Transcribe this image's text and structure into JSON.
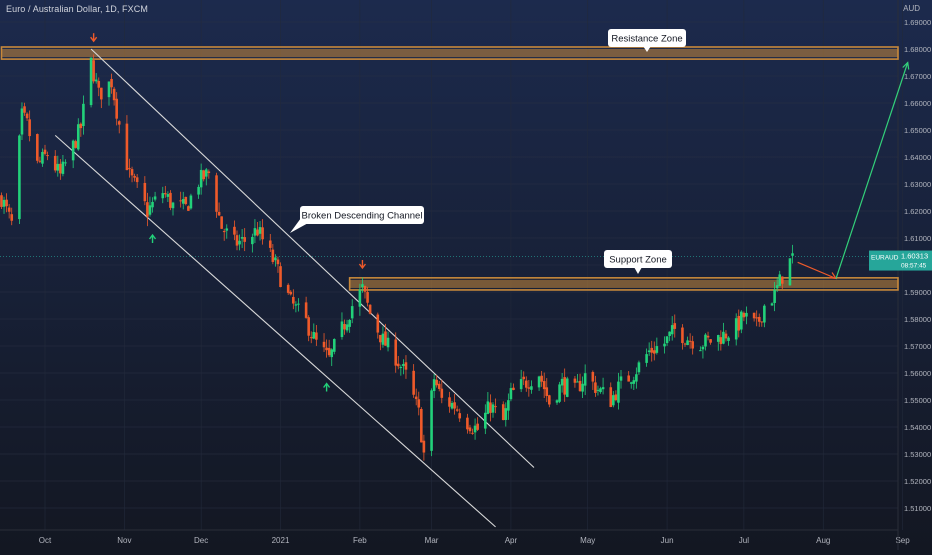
{
  "header": {
    "symbol_title": "Euro / Australian Dollar, 1D, FXCM",
    "currency": "AUD"
  },
  "price_tag": {
    "symbol": "EURAUD",
    "price": "1.60313",
    "countdown": "08:57:45"
  },
  "annotations": {
    "resistance": "Resistance Zone",
    "support": "Support Zone",
    "channel": "Broken Descending Channel"
  },
  "colors": {
    "background": "#131722",
    "up": "#26a69a",
    "up_bright": "#22d17a",
    "down": "#ef5a2a",
    "zone": "#c8893b",
    "channel": "#d9d9d9",
    "projection": "#33d17a",
    "price_tag": "#26a69a"
  },
  "chart_data": {
    "type": "candlestick",
    "symbol": "EURAUD",
    "timeframe": "1D",
    "source": "FXCM",
    "x_labels": [
      "Oct",
      "Nov",
      "Dec",
      "2021",
      "Feb",
      "Mar",
      "Apr",
      "May",
      "Jun",
      "Jul",
      "Aug",
      "Sep"
    ],
    "y_ticks": [
      1.51,
      1.52,
      1.53,
      1.54,
      1.55,
      1.56,
      1.57,
      1.58,
      1.59,
      1.6,
      1.61,
      1.62,
      1.63,
      1.64,
      1.65,
      1.66,
      1.67,
      1.68,
      1.69
    ],
    "y_tick_labels": [
      "1.51000",
      "1.52000",
      "1.53000",
      "1.54000",
      "1.55000",
      "1.56000",
      "1.57000",
      "1.58000",
      "1.59000",
      "1.60000",
      "1.61000",
      "1.62000",
      "1.63000",
      "1.64000",
      "1.65000",
      "1.66000",
      "1.67000",
      "1.68000",
      "1.69000"
    ],
    "ylim": [
      1.505,
      1.695
    ],
    "last_price": 1.60313,
    "close_path": [
      [
        "2020-09-14",
        1.625
      ],
      [
        "2020-09-18",
        1.615
      ],
      [
        "2020-09-22",
        1.655
      ],
      [
        "2020-09-24",
        1.652
      ],
      [
        "2020-09-28",
        1.637
      ],
      [
        "2020-10-02",
        1.641
      ],
      [
        "2020-10-07",
        1.633
      ],
      [
        "2020-10-12",
        1.644
      ],
      [
        "2020-10-15",
        1.651
      ],
      [
        "2020-10-19",
        1.675
      ],
      [
        "2020-10-22",
        1.663
      ],
      [
        "2020-10-27",
        1.668
      ],
      [
        "2020-10-30",
        1.652
      ],
      [
        "2020-11-03",
        1.633
      ],
      [
        "2020-11-06",
        1.628
      ],
      [
        "2020-11-10",
        1.62
      ],
      [
        "2020-11-16",
        1.627
      ],
      [
        "2020-11-20",
        1.622
      ],
      [
        "2020-11-25",
        1.621
      ],
      [
        "2020-11-30",
        1.631
      ],
      [
        "2020-12-04",
        1.634
      ],
      [
        "2020-12-09",
        1.614
      ],
      [
        "2020-12-14",
        1.608
      ],
      [
        "2020-12-18",
        1.609
      ],
      [
        "2020-12-23",
        1.613
      ],
      [
        "2020-12-30",
        1.6
      ],
      [
        "2021-01-05",
        1.586
      ],
      [
        "2021-01-11",
        1.579
      ],
      [
        "2021-01-15",
        1.571
      ],
      [
        "2021-01-20",
        1.565
      ],
      [
        "2021-01-25",
        1.576
      ],
      [
        "2021-01-29",
        1.585
      ],
      [
        "2021-02-02",
        1.591
      ],
      [
        "2021-02-05",
        1.582
      ],
      [
        "2021-02-10",
        1.572
      ],
      [
        "2021-02-15",
        1.566
      ],
      [
        "2021-02-19",
        1.559
      ],
      [
        "2021-02-24",
        1.545
      ],
      [
        "2021-02-26",
        1.53
      ],
      [
        "2021-03-02",
        1.558
      ],
      [
        "2021-03-05",
        1.55
      ],
      [
        "2021-03-10",
        1.548
      ],
      [
        "2021-03-15",
        1.542
      ],
      [
        "2021-03-19",
        1.539
      ],
      [
        "2021-03-24",
        1.548
      ],
      [
        "2021-03-29",
        1.542
      ],
      [
        "2021-04-01",
        1.552
      ],
      [
        "2021-04-06",
        1.556
      ],
      [
        "2021-04-12",
        1.56
      ],
      [
        "2021-04-16",
        1.549
      ],
      [
        "2021-04-21",
        1.556
      ],
      [
        "2021-04-26",
        1.553
      ],
      [
        "2021-04-30",
        1.559
      ],
      [
        "2021-05-05",
        1.554
      ],
      [
        "2021-05-10",
        1.55
      ],
      [
        "2021-05-14",
        1.556
      ],
      [
        "2021-05-19",
        1.56
      ],
      [
        "2021-05-25",
        1.568
      ],
      [
        "2021-05-31",
        1.571
      ],
      [
        "2021-06-04",
        1.576
      ],
      [
        "2021-06-09",
        1.573
      ],
      [
        "2021-06-14",
        1.571
      ],
      [
        "2021-06-18",
        1.572
      ],
      [
        "2021-06-23",
        1.574
      ],
      [
        "2021-06-28",
        1.577
      ],
      [
        "2021-07-01",
        1.581
      ],
      [
        "2021-07-06",
        1.577
      ],
      [
        "2021-07-09",
        1.585
      ],
      [
        "2021-07-13",
        1.589
      ],
      [
        "2021-07-16",
        1.596
      ],
      [
        "2021-07-20",
        1.603
      ]
    ],
    "zones": [
      {
        "label": "Resistance Zone",
        "low": 1.677,
        "high": 1.68,
        "from": "2020-09-14",
        "to": "2021-09-10"
      },
      {
        "label": "Support Zone",
        "low": 1.5915,
        "high": 1.5945,
        "from": "2021-01-28",
        "to": "2021-09-10"
      }
    ],
    "channel_lines": [
      {
        "from": [
          "2020-10-19",
          1.68
        ],
        "to": [
          "2021-04-10",
          1.525
        ]
      },
      {
        "from": [
          "2020-10-05",
          1.648
        ],
        "to": [
          "2021-03-26",
          1.503
        ]
      }
    ],
    "arrows": [
      {
        "type": "down",
        "at": [
          "2020-10-20",
          1.684
        ]
      },
      {
        "type": "up",
        "at": [
          "2020-11-12",
          1.61
        ]
      },
      {
        "type": "up",
        "at": [
          "2021-01-19",
          1.555
        ]
      },
      {
        "type": "down",
        "at": [
          "2021-02-02",
          1.6
        ]
      }
    ],
    "projection": [
      {
        "from": [
          "2021-07-22",
          1.601
        ],
        "to": [
          "2021-08-06",
          1.595
        ]
      },
      {
        "from": [
          "2021-08-06",
          1.595
        ],
        "to": [
          "2021-09-03",
          1.675
        ]
      }
    ],
    "grid": true
  }
}
